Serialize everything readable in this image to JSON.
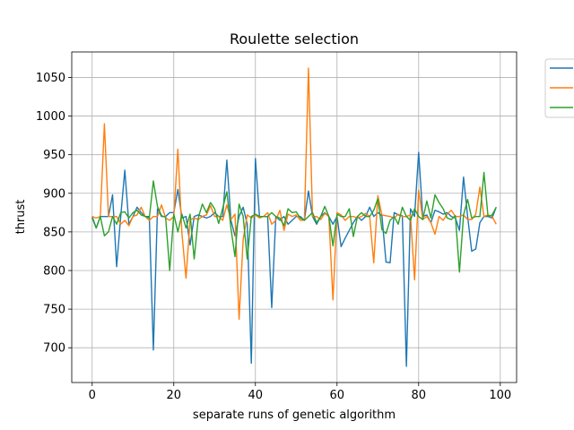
{
  "chart_data": {
    "type": "line",
    "title": "Roulette selection",
    "xlabel": "separate runs of genetic algorithm",
    "ylabel": "thrust",
    "xlim": [
      -5,
      104
    ],
    "ylim": [
      655,
      1083
    ],
    "xticks": [
      0,
      20,
      40,
      60,
      80,
      100
    ],
    "yticks": [
      700,
      750,
      800,
      850,
      900,
      950,
      1000,
      1050
    ],
    "grid": true,
    "legend_location": "outside upper right",
    "series": [
      {
        "color": "#1f77b4",
        "values": [
          870,
          855,
          870,
          870,
          870,
          898,
          805,
          870,
          930,
          860,
          870,
          882,
          875,
          870,
          870,
          697,
          880,
          870,
          870,
          875,
          875,
          905,
          868,
          870,
          833,
          870,
          872,
          870,
          868,
          870,
          875,
          870,
          870,
          943,
          865,
          845,
          870,
          882,
          860,
          680,
          945,
          870,
          870,
          870,
          752,
          870,
          865,
          870,
          860,
          865,
          870,
          870,
          865,
          903,
          870,
          860,
          870,
          875,
          870,
          860,
          870,
          831,
          842,
          852,
          862,
          870,
          865,
          870,
          882,
          870,
          875,
          871,
          811,
          810,
          875,
          872,
          871,
          676,
          880,
          870,
          953,
          870,
          872,
          862,
          878,
          876,
          873,
          875,
          870,
          868,
          852,
          921,
          870,
          825,
          828,
          862,
          870,
          870,
          868,
          882
        ]
      },
      {
        "color": "#ff7f0e",
        "values": [
          870,
          868,
          870,
          990,
          870,
          870,
          870,
          860,
          865,
          858,
          870,
          872,
          882,
          870,
          865,
          870,
          870,
          885,
          868,
          865,
          870,
          957,
          848,
          790,
          866,
          868,
          866,
          870,
          872,
          884,
          870,
          870,
          865,
          885,
          866,
          873,
          737,
          840,
          872,
          868,
          872,
          868,
          870,
          875,
          860,
          865,
          878,
          852,
          873,
          870,
          872,
          865,
          865,
          1062,
          870,
          870,
          866,
          874,
          870,
          762,
          875,
          872,
          865,
          870,
          870,
          868,
          870,
          874,
          870,
          810,
          897,
          872,
          871,
          870,
          868,
          873,
          870,
          870,
          872,
          788,
          904,
          866,
          870,
          862,
          847,
          870,
          865,
          873,
          878,
          870,
          870,
          872,
          866,
          866,
          873,
          908,
          870,
          872,
          870,
          860
        ]
      },
      {
        "color": "#2ca02c",
        "values": [
          868,
          855,
          870,
          845,
          850,
          870,
          860,
          875,
          876,
          868,
          875,
          878,
          872,
          870,
          868,
          916,
          883,
          871,
          869,
          800,
          873,
          850,
          873,
          855,
          873,
          815,
          868,
          886,
          875,
          888,
          880,
          861,
          881,
          902,
          855,
          818,
          886,
          870,
          815,
          870,
          873,
          870,
          870,
          870,
          875,
          870,
          868,
          858,
          880,
          875,
          876,
          868,
          865,
          870,
          875,
          862,
          870,
          883,
          870,
          832,
          873,
          870,
          870,
          880,
          844,
          870,
          875,
          870,
          870,
          878,
          893,
          853,
          848,
          865,
          870,
          860,
          882,
          870,
          865,
          880,
          870,
          866,
          890,
          868,
          898,
          888,
          880,
          868,
          866,
          871,
          798,
          872,
          892,
          868,
          870,
          870,
          927,
          870,
          872,
          882
        ]
      }
    ]
  }
}
